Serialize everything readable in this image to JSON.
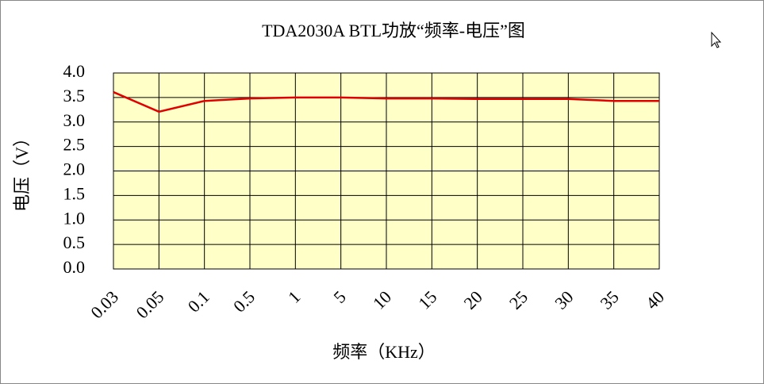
{
  "chart_data": {
    "type": "line",
    "title": "TDA2030A BTL功放“频率-电压”图",
    "x_label": "频率（KHz）",
    "y_label": "电压（V）",
    "categories": [
      "0.03",
      "0.05",
      "0.1",
      "0.5",
      "1",
      "5",
      "10",
      "15",
      "20",
      "25",
      "30",
      "35",
      "40"
    ],
    "series": [
      {
        "name": "电压",
        "color": "#e00000",
        "values": [
          3.61,
          3.21,
          3.43,
          3.48,
          3.5,
          3.5,
          3.48,
          3.48,
          3.47,
          3.47,
          3.47,
          3.43,
          3.43
        ]
      }
    ],
    "ylim": [
      0,
      4
    ],
    "yticks": [
      {
        "value": 0,
        "label": "0.0"
      },
      0.5,
      {
        "value": 1,
        "label": "1.0"
      },
      1.5,
      {
        "value": 2,
        "label": "2.0"
      },
      2.5,
      {
        "value": 3,
        "label": "3.0"
      },
      3.5,
      {
        "value": 4,
        "label": "4.0"
      }
    ],
    "grid": true,
    "plot_background": "#ffffc8"
  }
}
